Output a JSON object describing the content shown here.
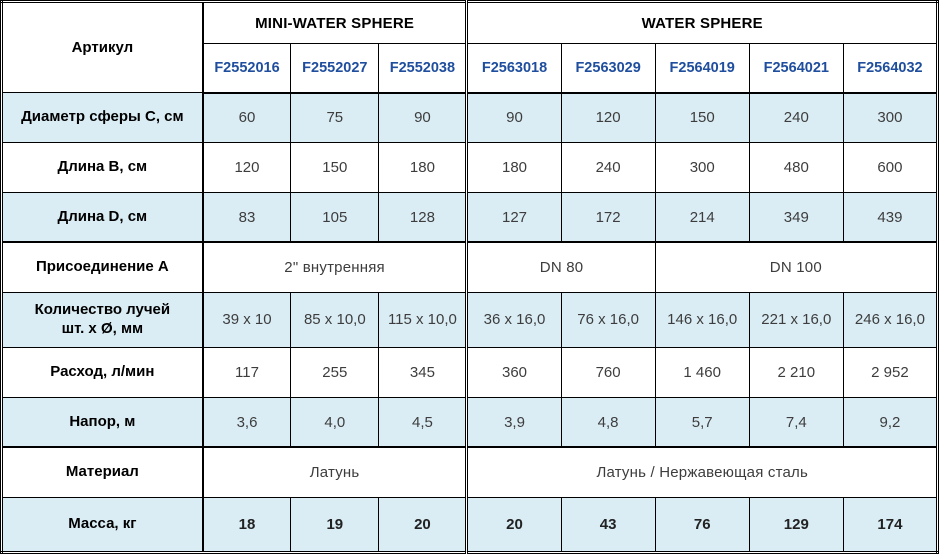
{
  "table": {
    "corner_label": "Артикул",
    "groups": [
      {
        "label": "MINI-WATER SPHERE",
        "articles": [
          "F2552016",
          "F2552027",
          "F2552038"
        ]
      },
      {
        "label": "WATER SPHERE",
        "articles": [
          "F2563018",
          "F2563029",
          "F2564019",
          "F2564021",
          "F2564032"
        ]
      }
    ],
    "rows": [
      {
        "label": "Диаметр сферы С, см",
        "type": "values",
        "shaded": true,
        "values": [
          "60",
          "75",
          "90",
          "90",
          "120",
          "150",
          "240",
          "300"
        ]
      },
      {
        "label": "Длина В, см",
        "type": "values",
        "shaded": false,
        "values": [
          "120",
          "150",
          "180",
          "180",
          "240",
          "300",
          "480",
          "600"
        ]
      },
      {
        "label": "Длина D, см",
        "type": "values",
        "shaded": true,
        "values": [
          "83",
          "105",
          "128",
          "127",
          "172",
          "214",
          "349",
          "439"
        ]
      },
      {
        "label": "Присоединение А",
        "type": "spans",
        "shaded": false,
        "thick_top": true,
        "cells": [
          {
            "text": "2\" внутренняя",
            "span": 3
          },
          {
            "text": "DN 80",
            "span": 2
          },
          {
            "text": "DN 100",
            "span": 3
          }
        ]
      },
      {
        "label": "Количество лучей\nшт. х Ø, мм",
        "type": "values",
        "shaded": true,
        "tall": true,
        "values": [
          "39 х 10",
          "85 х 10,0",
          "115 х 10,0",
          "36 х 16,0",
          "76 х 16,0",
          "146 х 16,0",
          "221 х 16,0",
          "246 х 16,0"
        ]
      },
      {
        "label": "Расход, л/мин",
        "type": "values",
        "shaded": false,
        "values": [
          "117",
          "255",
          "345",
          "360",
          "760",
          "1 460",
          "2 210",
          "2 952"
        ]
      },
      {
        "label": "Напор, м",
        "type": "values",
        "shaded": true,
        "values": [
          "3,6",
          "4,0",
          "4,5",
          "3,9",
          "4,8",
          "5,7",
          "7,4",
          "9,2"
        ]
      },
      {
        "label": "Материал",
        "type": "spans",
        "shaded": false,
        "thick_top": true,
        "cells": [
          {
            "text": "Латунь",
            "span": 3
          },
          {
            "text": "Латунь / Нержавеющая сталь",
            "span": 5
          }
        ]
      },
      {
        "label": "Масса, кг",
        "type": "values",
        "shaded": true,
        "tall": true,
        "bold_values": true,
        "values": [
          "18",
          "19",
          "20",
          "20",
          "43",
          "76",
          "129",
          "174"
        ]
      }
    ],
    "colors": {
      "shaded_row_bg": "#daedf4",
      "article_blue": "#1f4e9e",
      "border": "#000000",
      "value_text": "#3d3d3d"
    }
  }
}
